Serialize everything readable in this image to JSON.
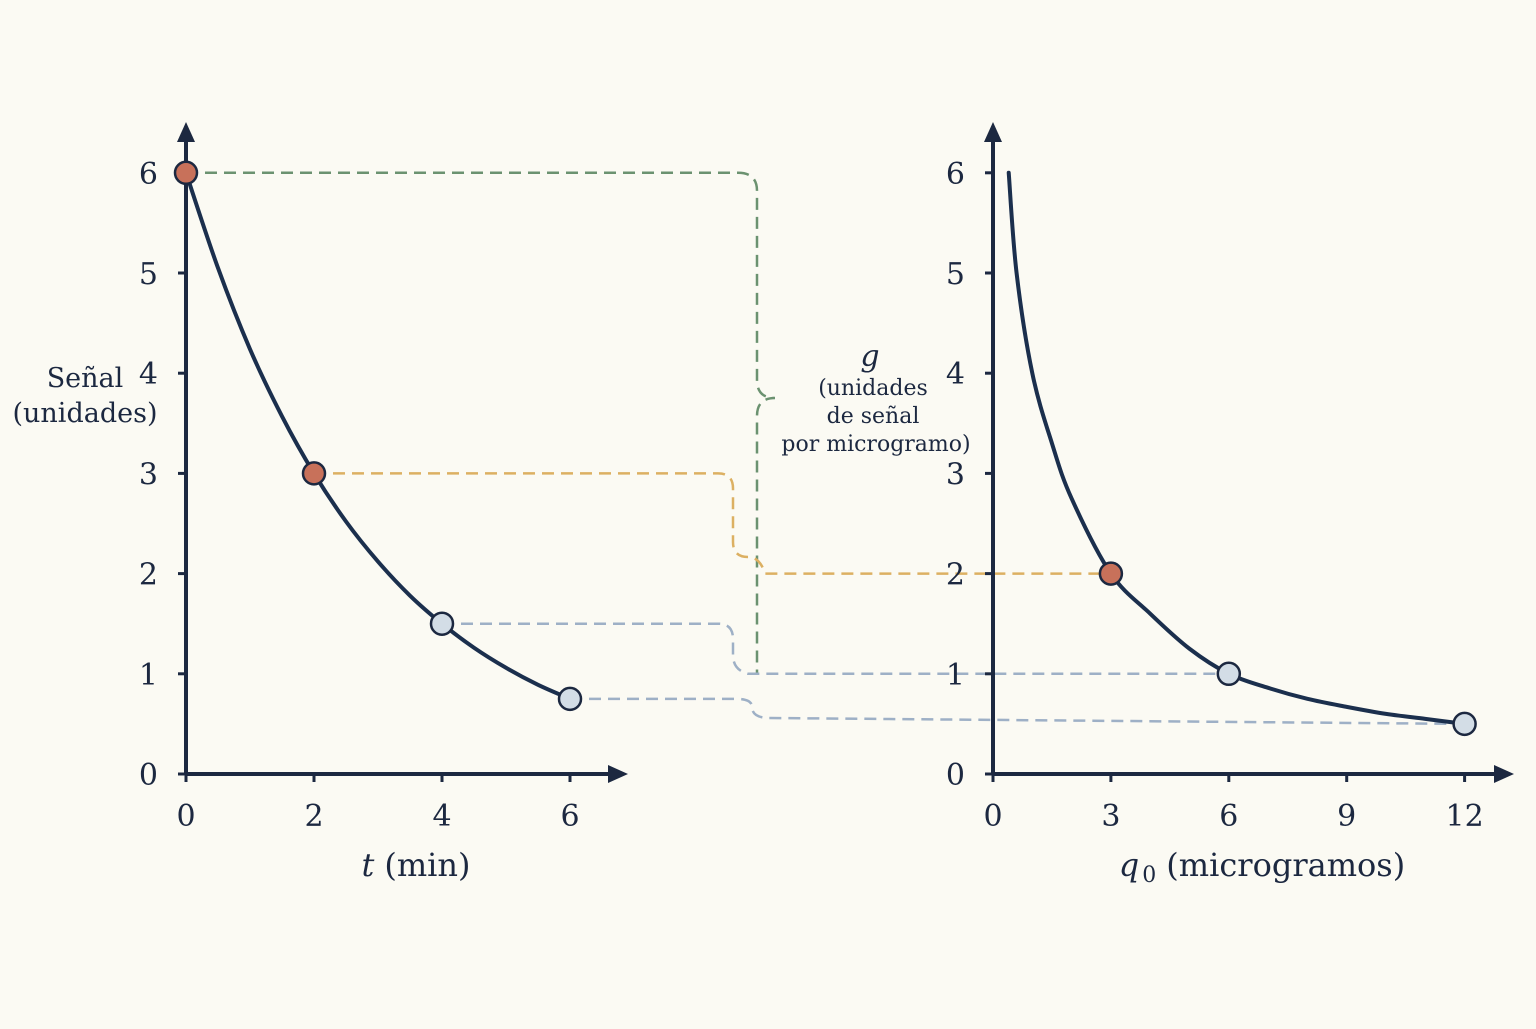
{
  "colors": {
    "background": "#fbfaf3",
    "axis": "#1c2840",
    "curve": "#1b2f4d",
    "highlight_point": "#c8715a",
    "plain_point": "#d3dde6",
    "green_guide": "#6b9270",
    "orange_guide": "#dcb062",
    "blue_guide": "#9eb0c6"
  },
  "left_y_label_line1": "Señal",
  "left_y_label_line2": "(unidades)",
  "g_label": {
    "symbol": "g",
    "line1": "(unidades",
    "line2": "de señal",
    "line3": "por microgramo)"
  },
  "chart_data": [
    {
      "type": "line",
      "title": "",
      "xlabel_symbol": "t",
      "xlabel": "(min)",
      "ylabel": "Señal (unidades)",
      "xlim": [
        0,
        6.8
      ],
      "ylim": [
        0,
        6
      ],
      "xticks": [
        "0",
        "2",
        "4",
        "6"
      ],
      "yticks": [
        "0",
        "1",
        "2",
        "3",
        "4",
        "5",
        "6"
      ],
      "curve": {
        "x": [
          0,
          0.5,
          1,
          1.5,
          2,
          2.5,
          3,
          3.5,
          4,
          4.5,
          5,
          5.5,
          6
        ],
        "y": [
          6,
          5.05,
          4.24,
          3.57,
          3,
          2.52,
          2.12,
          1.78,
          1.5,
          1.26,
          1.06,
          0.89,
          0.75
        ]
      },
      "points": [
        {
          "x": 0,
          "y": 6,
          "highlight": true
        },
        {
          "x": 2,
          "y": 3,
          "highlight": true
        },
        {
          "x": 4,
          "y": 1.5,
          "highlight": false
        },
        {
          "x": 6,
          "y": 0.75,
          "highlight": false
        }
      ]
    },
    {
      "type": "line",
      "title": "",
      "xlabel_symbol": "q",
      "xlabel_subscript": "0",
      "xlabel": "(microgramos)",
      "xlim": [
        0,
        13
      ],
      "ylim": [
        0,
        6
      ],
      "xticks": [
        "0",
        "3",
        "6",
        "9",
        "12"
      ],
      "yticks": [
        "0",
        "1",
        "2",
        "3",
        "4",
        "5",
        "6"
      ],
      "curve": {
        "x": [
          0.4,
          0.6,
          1,
          1.5,
          2,
          3,
          4,
          5,
          6,
          7,
          8,
          9,
          10,
          11,
          12
        ],
        "y": [
          6,
          5.0,
          4.0,
          3.3,
          2.75,
          2,
          1.6,
          1.25,
          1,
          0.86,
          0.75,
          0.67,
          0.6,
          0.55,
          0.5
        ]
      },
      "points": [
        {
          "x": 3,
          "y": 2,
          "highlight": true
        },
        {
          "x": 6,
          "y": 1,
          "highlight": false
        },
        {
          "x": 12,
          "y": 0.5,
          "highlight": false
        }
      ]
    }
  ]
}
